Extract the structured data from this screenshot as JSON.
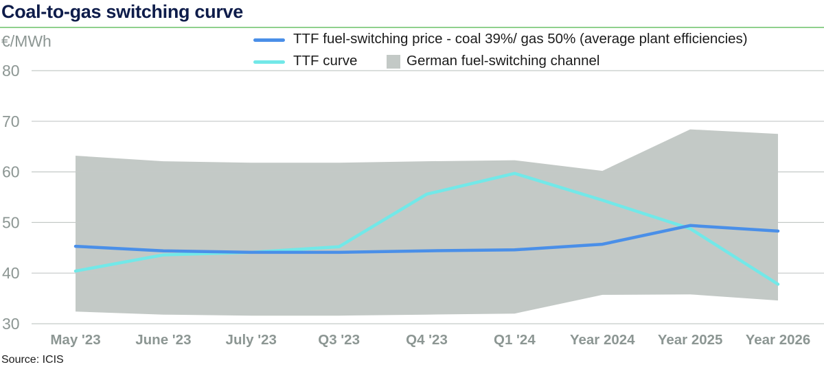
{
  "title": "Coal-to-gas switching curve",
  "unit_label": "€/MWh",
  "source": "Source: ICIS",
  "legend": {
    "switch_price": "TTF fuel-switching price - coal 39%/ gas 50% (average plant efficiencies)",
    "ttf_curve": "TTF curve",
    "channel": "German fuel-switching channel"
  },
  "colors": {
    "switch_price": "#4a8fe8",
    "ttf_curve": "#72e8e8",
    "channel": "#c3c9c6",
    "grid": "#c4c9c7",
    "ticks": "#8c9693"
  },
  "chart_data": {
    "type": "line",
    "categories": [
      "May '23",
      "June '23",
      "July '23",
      "Q3 '23",
      "Q4 '23",
      "Q1 '24",
      "Year 2024",
      "Year 2025",
      "Year 2026"
    ],
    "ylim": [
      30,
      80
    ],
    "yticks": [
      30,
      40,
      50,
      60,
      70,
      80
    ],
    "ylabel": "€/MWh",
    "grid": true,
    "legend_position": "top-right",
    "series": [
      {
        "name": "TTF fuel-switching price - coal 39%/ gas 50% (average plant efficiencies)",
        "values": [
          45.3,
          44.4,
          44.1,
          44.1,
          44.4,
          44.6,
          45.7,
          49.4,
          48.3
        ]
      },
      {
        "name": "TTF curve",
        "values": [
          40.4,
          43.6,
          44.1,
          45.2,
          55.6,
          59.7,
          54.4,
          48.8,
          37.8
        ]
      }
    ],
    "band": {
      "name": "German fuel-switching channel",
      "upper": [
        63.2,
        62.1,
        61.8,
        61.8,
        62.1,
        62.3,
        60.2,
        68.4,
        67.5
      ],
      "lower": [
        32.4,
        31.8,
        31.6,
        31.6,
        31.8,
        32.0,
        35.7,
        35.8,
        34.6
      ]
    }
  }
}
